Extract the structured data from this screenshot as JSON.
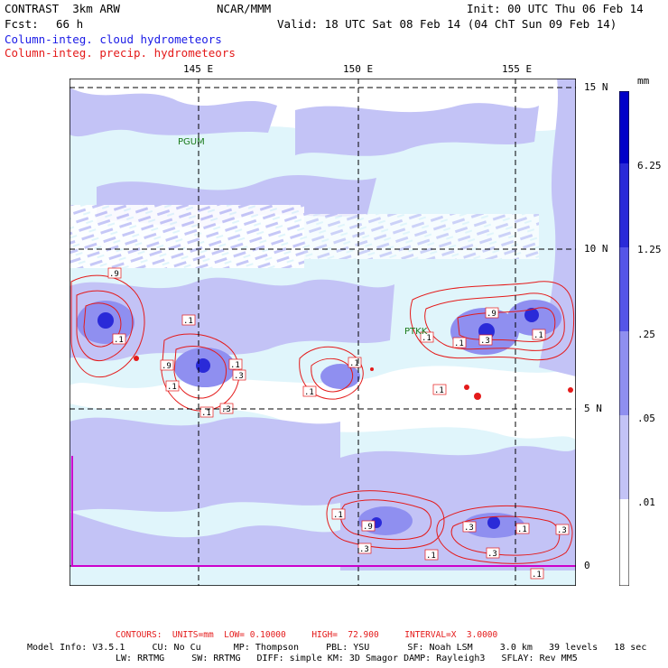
{
  "header": {
    "title": "CONTRAST  3km ARW",
    "org": "NCAR/MMM",
    "init": "Init: 00 UTC Thu 06 Feb 14",
    "fcst_label": "Fcst:",
    "fcst_value": "66 h",
    "valid": "Valid: 18 UTC Sat 08 Feb 14 (04 ChT Sun 09 Feb 14)",
    "field_cloud": "Column-integ. cloud hydrometeors",
    "field_precip": "Column-integ. precip. hydrometeors"
  },
  "colors": {
    "cloud_blue": "#1a1ae6",
    "precip_red": "#e41a1a",
    "station_green": "#1a7a1a",
    "boundary_magenta": "#cc00cc"
  },
  "map": {
    "lon_labels": [
      "145 E",
      "150 E",
      "155 E"
    ],
    "lat_labels": [
      "15 N",
      "10 N",
      "5 N",
      "0"
    ],
    "stations": [
      "PGUM",
      "PTKK"
    ],
    "contour_labels": [
      ".9",
      ".1",
      ".1",
      ".9",
      ".1",
      ".3",
      ".1",
      ".3",
      ".1",
      ".1",
      ".1",
      ".1",
      ".9",
      ".1",
      ".3",
      ".1",
      ".1",
      ".1",
      ".9",
      ".3",
      ".1",
      ".3",
      ".1",
      ".3",
      ".1",
      ".3"
    ]
  },
  "legend": {
    "units": "mm",
    "levels": [
      "6.25",
      "1.25",
      ".25",
      ".05",
      ".01"
    ],
    "fill_colors": [
      "#ffffff",
      "#e0f5fb",
      "#c3c3f6",
      "#8f8ff0",
      "#5555e8",
      "#2a2ad8",
      "#0000c8"
    ]
  },
  "footer": {
    "contours": "CONTOURS:  UNITS=mm  LOW= 0.10000     HIGH=  72.900     INTERVAL=X  3.0000",
    "model_line1": "Model Info: V3.5.1     CU: No Cu      MP: Thompson     PBL: YSU       SF: Noah LSM     3.0 km   39 levels   18 sec",
    "model_line2": "LW: RRTMG     SW: RRTMG   DIFF: simple KM: 3D Smagor DAMP: Rayleigh3   SFLAY: Rev MM5"
  }
}
